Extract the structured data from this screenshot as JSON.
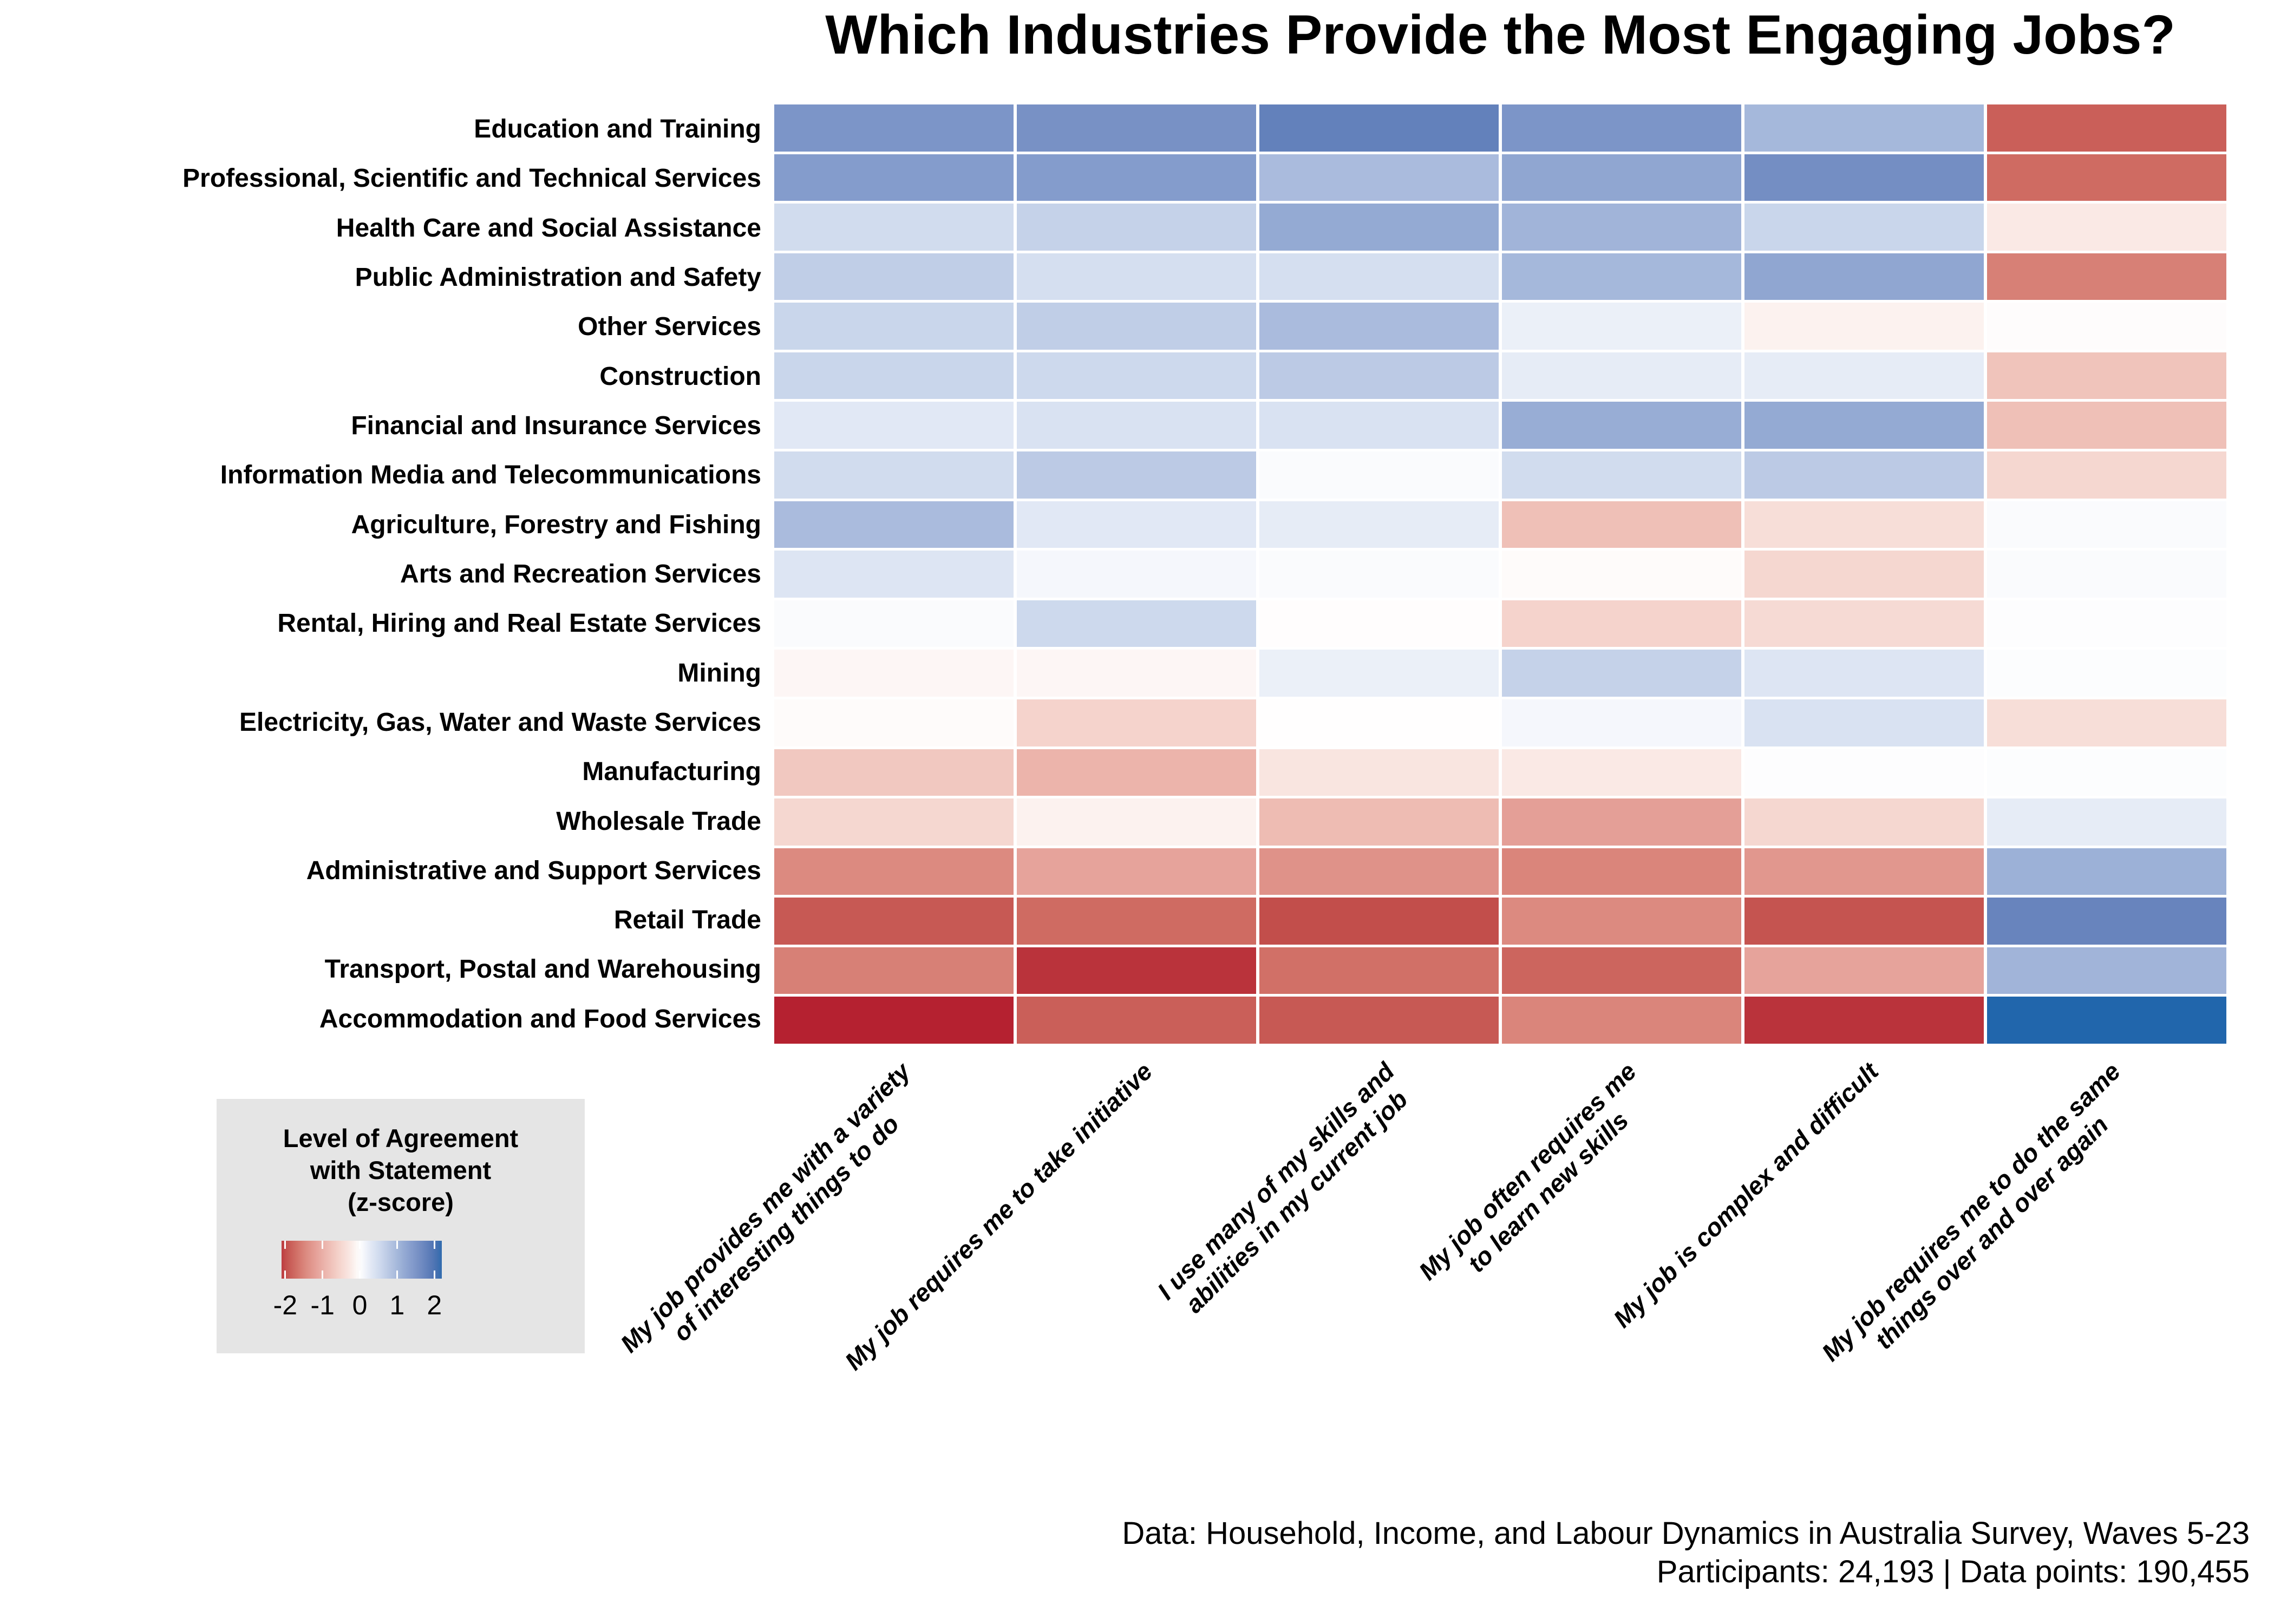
{
  "title": "Which Industries Provide the Most Engaging Jobs?",
  "chart_data": {
    "type": "heatmap",
    "rows": [
      "Education and Training",
      "Professional, Scientific and Technical Services",
      "Health Care and Social Assistance",
      "Public Administration and Safety",
      "Other Services",
      "Construction",
      "Financial and Insurance Services",
      "Information Media and Telecommunications",
      "Agriculture, Forestry and Fishing",
      "Arts and Recreation Services",
      "Rental, Hiring and Real Estate Services",
      "Mining",
      "Electricity, Gas, Water and Waste Services",
      "Manufacturing",
      "Wholesale Trade",
      "Administrative and Support Services",
      "Retail Trade",
      "Transport, Postal and Warehousing",
      "Accommodation and Food Services"
    ],
    "columns": [
      "My job provides me with a variety\nof interesting things to do",
      "My job requires me to take initiative",
      "I use many of my skills and\nabilities in my current job",
      "My job often requires me\nto learn new skills",
      "My job is complex and difficult",
      "My job requires me to do the same\nthings over and over again"
    ],
    "values": [
      [
        1.5,
        1.55,
        1.8,
        1.5,
        1.0,
        -1.85
      ],
      [
        1.4,
        1.4,
        0.95,
        1.25,
        1.6,
        -1.75
      ],
      [
        0.5,
        0.65,
        1.2,
        1.05,
        0.6,
        -0.25
      ],
      [
        0.7,
        0.45,
        0.45,
        1.0,
        1.25,
        -1.55
      ],
      [
        0.6,
        0.7,
        0.95,
        0.2,
        -0.15,
        -0.03
      ],
      [
        0.6,
        0.55,
        0.75,
        0.25,
        0.25,
        -0.75
      ],
      [
        0.3,
        0.4,
        0.4,
        1.15,
        1.2,
        -0.8
      ],
      [
        0.5,
        0.75,
        0.05,
        0.5,
        0.75,
        -0.5
      ],
      [
        0.95,
        0.3,
        0.25,
        -0.8,
        -0.4,
        0.05
      ],
      [
        0.35,
        0.1,
        0.05,
        -0.05,
        -0.5,
        0.05
      ],
      [
        0.05,
        0.55,
        -0.02,
        -0.55,
        -0.45,
        0.02
      ],
      [
        -0.1,
        -0.1,
        0.2,
        0.65,
        0.35,
        0.03
      ],
      [
        -0.05,
        -0.55,
        -0.01,
        0.1,
        0.4,
        -0.4
      ],
      [
        -0.7,
        -0.95,
        -0.3,
        -0.25,
        0.02,
        0.03
      ],
      [
        -0.5,
        -0.15,
        -0.85,
        -1.2,
        -0.5,
        0.25
      ],
      [
        -1.45,
        -1.15,
        -1.35,
        -1.5,
        -1.3,
        1.1
      ],
      [
        -1.9,
        -1.75,
        -2.0,
        -1.45,
        -1.95,
        1.75
      ],
      [
        -1.55,
        -2.15,
        -1.7,
        -1.8,
        -1.15,
        1.05
      ],
      [
        -2.25,
        -1.85,
        -1.9,
        -1.5,
        -2.15,
        2.3
      ]
    ],
    "value_domain": [
      -2.3,
      2.3
    ],
    "colorbar_domain": [
      -2.1,
      2.2
    ],
    "legend": {
      "title": "Level of Agreement\nwith Statement\n(z-score)",
      "ticks": [
        "-2",
        "-1",
        "0",
        "1",
        "2"
      ],
      "tick_values": [
        -2,
        -1,
        0,
        1,
        2
      ],
      "background": "#e5e5e5"
    },
    "colormap": [
      [
        -2.3,
        "#b2182b"
      ],
      [
        -2.0,
        "#c24e4b"
      ],
      [
        -1.73,
        "#d06d64"
      ],
      [
        -1.44,
        "#dc8b81"
      ],
      [
        -1.15,
        "#e6a39b"
      ],
      [
        -0.86,
        "#eebbb2"
      ],
      [
        -0.58,
        "#f4d1ca"
      ],
      [
        -0.29,
        "#f9e6e1"
      ],
      [
        0,
        "#ffffff"
      ],
      [
        0.29,
        "#e2e9f5"
      ],
      [
        0.58,
        "#cbd7ec"
      ],
      [
        0.86,
        "#b2c2e0"
      ],
      [
        1.15,
        "#98add5"
      ],
      [
        1.44,
        "#8199ca"
      ],
      [
        1.73,
        "#6a85be"
      ],
      [
        2.0,
        "#4f74b3"
      ],
      [
        2.3,
        "#2166ac"
      ]
    ],
    "grid_gap_color": "#ffffff"
  },
  "footer": {
    "line1": "Data: Household, Income, and Labour Dynamics in Australia Survey, Waves 5-23",
    "line2": "Participants: 24,193 | Data points: 190,455"
  }
}
